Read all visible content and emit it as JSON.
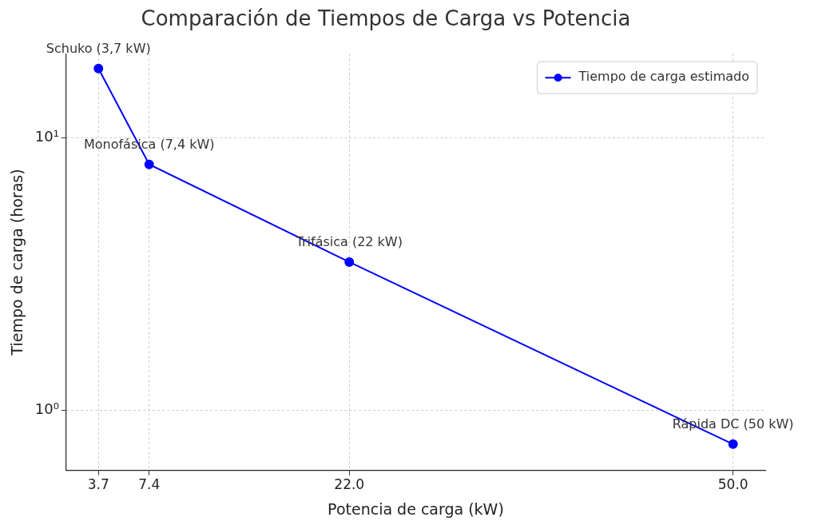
{
  "chart_data": {
    "type": "line",
    "title": "Comparación de Tiempos de Carga vs Potencia",
    "x_label": "Potencia de carga (kW)",
    "y_label": "Tiempo de carga (horas)",
    "x": [
      3.7,
      7.4,
      22,
      50
    ],
    "series": [
      {
        "name": "Tiempo de carga estimado",
        "color": "#0000ff",
        "marker": "circle",
        "line_style": "solid",
        "values": [
          18,
          8,
          3.5,
          0.75
        ]
      }
    ],
    "annotations": [
      "Schuko (3,7 kW)",
      "Monofásica (7,4 kW)",
      "Trifásica (22 kW)",
      "Rápida DC (50 kW)"
    ],
    "xlim": [
      1.35,
      52.35
    ],
    "xticks": [
      3.7,
      7.4,
      {
        "value": 22,
        "label": "22.0"
      },
      {
        "value": 50,
        "label": "50.0"
      }
    ],
    "ylim": [
      0.64,
      20.4
    ],
    "yticks": [
      {
        "value": 1,
        "label": "10⁰"
      },
      {
        "value": 10,
        "label": "10¹"
      }
    ],
    "log": "y",
    "grid": true,
    "legend": "upper right"
  }
}
